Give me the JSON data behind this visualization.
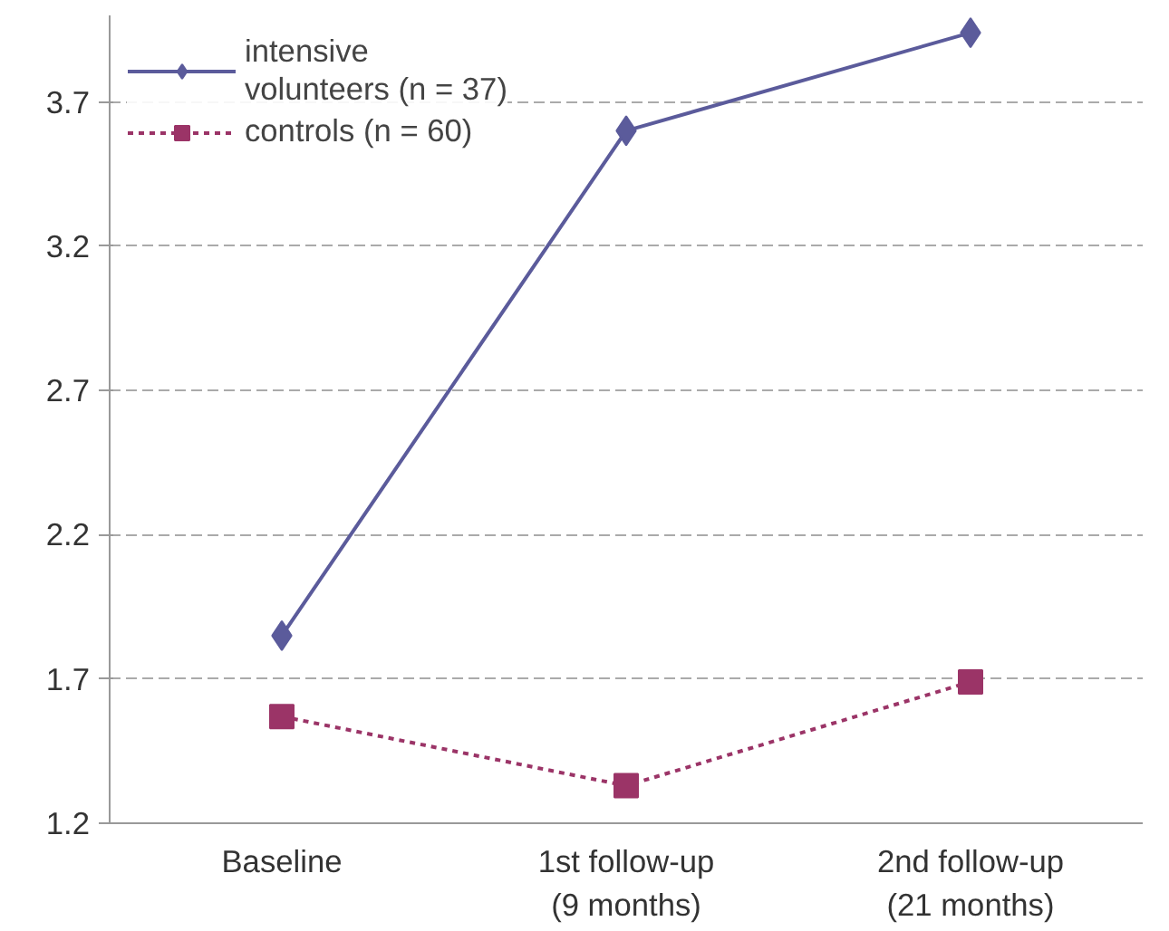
{
  "chart_data": {
    "type": "line",
    "categories": [
      "Baseline",
      "1st follow-up\n(9 months)",
      "2nd follow-up\n(21 months)"
    ],
    "series": [
      {
        "name": "intensive\nvolunteers (n = 37)",
        "color": "#5b5b9b",
        "values": [
          1.85,
          3.6,
          3.94
        ],
        "marker": "diamond",
        "line_style": "solid"
      },
      {
        "name": "controls (n = 60)",
        "color": "#9b3467",
        "values": [
          1.57,
          1.33,
          1.69
        ],
        "marker": "square",
        "line_style": "dotted"
      }
    ],
    "ylim": [
      1.2,
      4.0
    ],
    "yticks": [
      1.2,
      1.7,
      2.2,
      2.7,
      3.2,
      3.7
    ],
    "grid": "y",
    "legend": "top left"
  }
}
